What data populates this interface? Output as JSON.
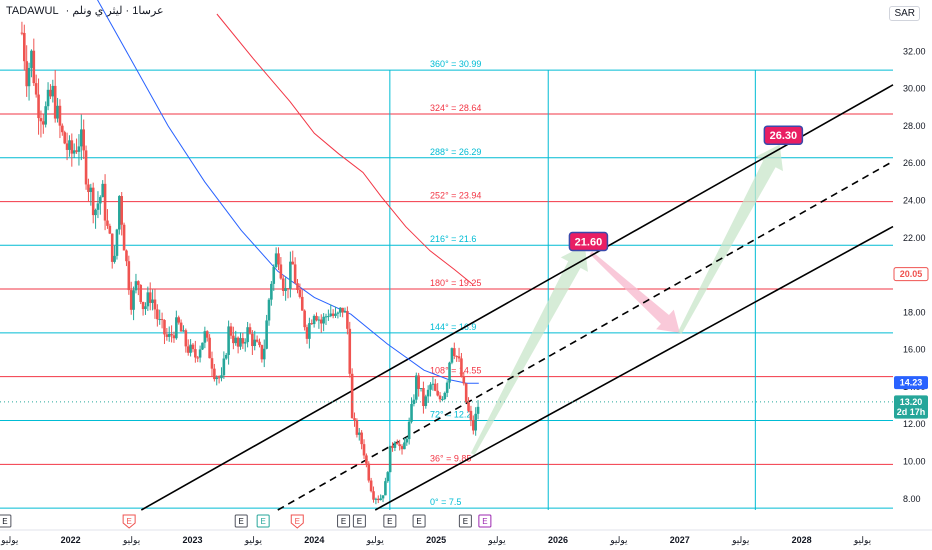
{
  "header": {
    "symbol": "TADAWUL",
    "separator": "·",
    "name": "عرسا1 · ليثر ي ونلم",
    "currency": "SAR"
  },
  "colors": {
    "up": "#26a69a",
    "down": "#ef5350",
    "ma_blue": "#2962ff",
    "ma_red": "#f23645",
    "cyan": "#00bcd4",
    "red_level": "#f23645",
    "channel": "#000000",
    "target_fill": "#e91e63",
    "green_arrow": "#c8e6c9",
    "red_arrow": "#f8bbd0"
  },
  "chart_data": {
    "type": "candlestick",
    "ylim": [
      7.4,
      34
    ],
    "y_ticks": [
      8,
      10,
      12,
      14,
      16,
      18,
      20,
      22,
      24,
      26,
      28,
      30,
      32
    ],
    "x_range": [
      2021.42,
      2028.75
    ],
    "x_ticks": [
      {
        "x": 2021.5,
        "label": "يوليو"
      },
      {
        "x": 2022.0,
        "label": "2022"
      },
      {
        "x": 2022.5,
        "label": "يوليو"
      },
      {
        "x": 2023.0,
        "label": "2023"
      },
      {
        "x": 2023.5,
        "label": "يوليو"
      },
      {
        "x": 2024.0,
        "label": "2024"
      },
      {
        "x": 2024.5,
        "label": "يوليو"
      },
      {
        "x": 2025.0,
        "label": "2025"
      },
      {
        "x": 2025.5,
        "label": "يوليو"
      },
      {
        "x": 2026.0,
        "label": "2026"
      },
      {
        "x": 2026.5,
        "label": "يوليو"
      },
      {
        "x": 2027.0,
        "label": "2027"
      },
      {
        "x": 2027.5,
        "label": "يوليو"
      },
      {
        "x": 2028.0,
        "label": "2028"
      },
      {
        "x": 2028.5,
        "label": "يوليو"
      }
    ],
    "price_path": [
      [
        2021.6,
        33.0
      ],
      [
        2021.64,
        30.8
      ],
      [
        2021.68,
        31.8
      ],
      [
        2021.72,
        29.4
      ],
      [
        2021.78,
        28.5
      ],
      [
        2021.85,
        29.8
      ],
      [
        2021.92,
        27.6
      ],
      [
        2022.0,
        26.4
      ],
      [
        2022.08,
        27.4
      ],
      [
        2022.14,
        25.0
      ],
      [
        2022.2,
        23.5
      ],
      [
        2022.26,
        24.5
      ],
      [
        2022.3,
        22.5
      ],
      [
        2022.36,
        20.6
      ],
      [
        2022.4,
        24.3
      ],
      [
        2022.45,
        21.0
      ],
      [
        2022.5,
        18.5
      ],
      [
        2022.55,
        19.8
      ],
      [
        2022.6,
        18.2
      ],
      [
        2022.66,
        19.0
      ],
      [
        2022.72,
        17.5
      ],
      [
        2022.8,
        16.5
      ],
      [
        2022.88,
        17.4
      ],
      [
        2022.95,
        16.2
      ],
      [
        2023.02,
        15.6
      ],
      [
        2023.1,
        16.8
      ],
      [
        2023.18,
        14.8
      ],
      [
        2023.24,
        14.3
      ],
      [
        2023.3,
        17.2
      ],
      [
        2023.38,
        16.0
      ],
      [
        2023.45,
        17.0
      ],
      [
        2023.52,
        16.2
      ],
      [
        2023.58,
        15.6
      ],
      [
        2023.64,
        19.5
      ],
      [
        2023.7,
        21.4
      ],
      [
        2023.76,
        19.0
      ],
      [
        2023.82,
        20.6
      ],
      [
        2023.88,
        18.4
      ],
      [
        2023.94,
        17.0
      ],
      [
        2024.0,
        18.2
      ],
      [
        2024.06,
        17.4
      ],
      [
        2024.12,
        18.1
      ],
      [
        2024.18,
        17.6
      ],
      [
        2024.24,
        18.3
      ],
      [
        2024.28,
        16.8
      ],
      [
        2024.31,
        12.2
      ],
      [
        2024.35,
        11.6
      ],
      [
        2024.4,
        10.8
      ],
      [
        2024.44,
        9.4
      ],
      [
        2024.48,
        8.2
      ],
      [
        2024.54,
        8.0
      ],
      [
        2024.58,
        8.6
      ],
      [
        2024.62,
        10.5
      ],
      [
        2024.67,
        11.4
      ],
      [
        2024.72,
        10.4
      ],
      [
        2024.78,
        12.0
      ],
      [
        2024.84,
        14.5
      ],
      [
        2024.9,
        13.0
      ],
      [
        2024.96,
        14.2
      ],
      [
        2025.02,
        13.2
      ],
      [
        2025.08,
        14.0
      ],
      [
        2025.13,
        16.4
      ],
      [
        2025.19,
        15.2
      ],
      [
        2025.24,
        13.4
      ],
      [
        2025.3,
        11.6
      ],
      [
        2025.35,
        13.2
      ]
    ],
    "ma_blue": [
      [
        2022.2,
        35.0
      ],
      [
        2022.5,
        31.5
      ],
      [
        2022.8,
        28.0
      ],
      [
        2023.1,
        25.0
      ],
      [
        2023.4,
        22.4
      ],
      [
        2023.7,
        20.2
      ],
      [
        2024.0,
        18.8
      ],
      [
        2024.3,
        17.9
      ],
      [
        2024.6,
        16.3
      ],
      [
        2024.9,
        14.9
      ],
      [
        2025.1,
        14.4
      ],
      [
        2025.25,
        14.2
      ],
      [
        2025.35,
        14.2
      ]
    ],
    "ma_red": [
      [
        2023.2,
        34.0
      ],
      [
        2023.5,
        31.6
      ],
      [
        2023.8,
        29.3
      ],
      [
        2024.0,
        27.6
      ],
      [
        2024.2,
        26.5
      ],
      [
        2024.4,
        25.5
      ],
      [
        2024.55,
        24.2
      ],
      [
        2024.75,
        22.6
      ],
      [
        2024.95,
        21.3
      ],
      [
        2025.15,
        20.3
      ],
      [
        2025.3,
        19.5
      ]
    ],
    "fib_levels": [
      {
        "label": "0° = 7.5",
        "value": 7.5,
        "color": "cyan"
      },
      {
        "label": "36° = 9.85",
        "value": 9.85,
        "color": "red"
      },
      {
        "label": "72° = 12.2",
        "value": 12.2,
        "color": "cyan"
      },
      {
        "label": "108° = 14.55",
        "value": 14.55,
        "color": "red"
      },
      {
        "label": "144° = 16.9",
        "value": 16.9,
        "color": "cyan"
      },
      {
        "label": "180° = 19.25",
        "value": 19.25,
        "color": "red"
      },
      {
        "label": "216° = 21.6",
        "value": 21.6,
        "color": "cyan"
      },
      {
        "label": "252° = 23.94",
        "value": 23.94,
        "color": "red"
      },
      {
        "label": "288° = 26.29",
        "value": 26.29,
        "color": "cyan"
      },
      {
        "label": "324° = 28.64",
        "value": 28.64,
        "color": "red"
      },
      {
        "label": "360° = 30.99",
        "value": 30.99,
        "color": "cyan"
      }
    ],
    "time_lines": [
      2024.62,
      2025.92,
      2027.62
    ],
    "channel": {
      "upper": [
        [
          2022.58,
          7.4
        ],
        [
          2028.75,
          30.2
        ]
      ],
      "mid": [
        [
          2023.7,
          7.4
        ],
        [
          2028.75,
          26.1
        ]
      ],
      "lower": [
        [
          2024.5,
          7.4
        ],
        [
          2028.75,
          22.6
        ]
      ]
    },
    "targets": [
      {
        "label": "21.60",
        "x": 2026.25,
        "value": 21.8
      },
      {
        "label": "26.30",
        "x": 2027.85,
        "value": 27.5
      }
    ],
    "price_tags": [
      {
        "label": "20.05",
        "value": 20.05,
        "style": "red-outline"
      },
      {
        "label": "14.23",
        "value": 14.23,
        "style": "blue"
      },
      {
        "label": "13.20",
        "value": 13.2,
        "style": "green"
      },
      {
        "label": "2d 17h",
        "value": 12.65,
        "style": "green"
      }
    ],
    "events": [
      {
        "x": 2021.46,
        "label": "E",
        "style": "gray"
      },
      {
        "x": 2022.48,
        "label": "E",
        "style": "red"
      },
      {
        "x": 2023.4,
        "label": "E",
        "style": "gray"
      },
      {
        "x": 2023.58,
        "label": "E",
        "style": "green"
      },
      {
        "x": 2023.86,
        "label": "E",
        "style": "red"
      },
      {
        "x": 2024.24,
        "label": "E",
        "style": "gray"
      },
      {
        "x": 2024.37,
        "label": "E",
        "style": "gray"
      },
      {
        "x": 2024.62,
        "label": "E",
        "style": "gray"
      },
      {
        "x": 2024.86,
        "label": "E",
        "style": "gray"
      },
      {
        "x": 2025.24,
        "label": "E",
        "style": "gray"
      },
      {
        "x": 2025.4,
        "label": "E",
        "style": "purple"
      }
    ]
  }
}
